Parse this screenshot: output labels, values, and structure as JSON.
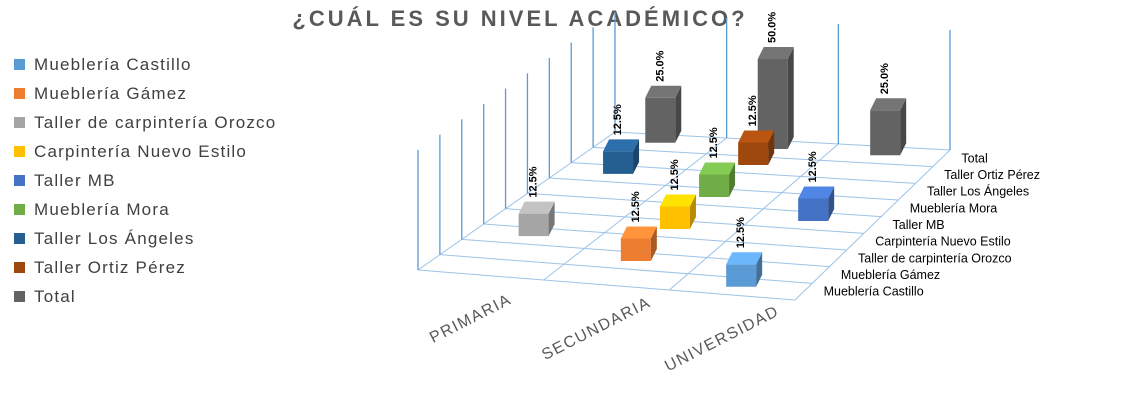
{
  "chart_data": {
    "type": "bar",
    "title": "¿CUÁL ES SU NIVEL ACADÉMICO?",
    "categories": [
      "PRIMARIA",
      "SECUNDARIA",
      "UNIVERSIDAD"
    ],
    "series": [
      {
        "name": "Mueblería Castillo",
        "color": "#5B9BD5",
        "values": [
          null,
          null,
          12.5
        ],
        "labels": [
          "",
          "",
          "12.5%"
        ]
      },
      {
        "name": "Mueblería Gámez",
        "color": "#ED7D31",
        "values": [
          null,
          12.5,
          null
        ],
        "labels": [
          "",
          "12.5%",
          ""
        ]
      },
      {
        "name": "Taller de carpintería Orozco",
        "color": "#A5A5A5",
        "values": [
          12.5,
          null,
          null
        ],
        "labels": [
          "12.5%",
          "",
          ""
        ]
      },
      {
        "name": "Carpintería Nuevo Estilo",
        "color": "#FFC000",
        "values": [
          null,
          12.5,
          null
        ],
        "labels": [
          "",
          "12.5%",
          ""
        ]
      },
      {
        "name": "Taller MB",
        "color": "#4472C4",
        "values": [
          null,
          null,
          12.5
        ],
        "labels": [
          "",
          "",
          "12.5%"
        ]
      },
      {
        "name": "Mueblería Mora",
        "color": "#70AD47",
        "values": [
          null,
          12.5,
          null
        ],
        "labels": [
          "",
          "12.5%",
          ""
        ]
      },
      {
        "name": "Taller Los Ángeles",
        "color": "#255E91",
        "values": [
          12.5,
          null,
          null
        ],
        "labels": [
          "12.5%",
          "",
          ""
        ]
      },
      {
        "name": "Taller Ortiz Pérez",
        "color": "#9E480E",
        "values": [
          null,
          12.5,
          null
        ],
        "labels": [
          "",
          "12.5%",
          ""
        ]
      },
      {
        "name": "Total",
        "color": "#636363",
        "values": [
          25,
          50,
          25
        ],
        "labels": [
          "25.0%",
          "50.0%",
          "25.0%"
        ]
      }
    ],
    "legend_position": "left",
    "grid": true,
    "projection": "3d"
  }
}
